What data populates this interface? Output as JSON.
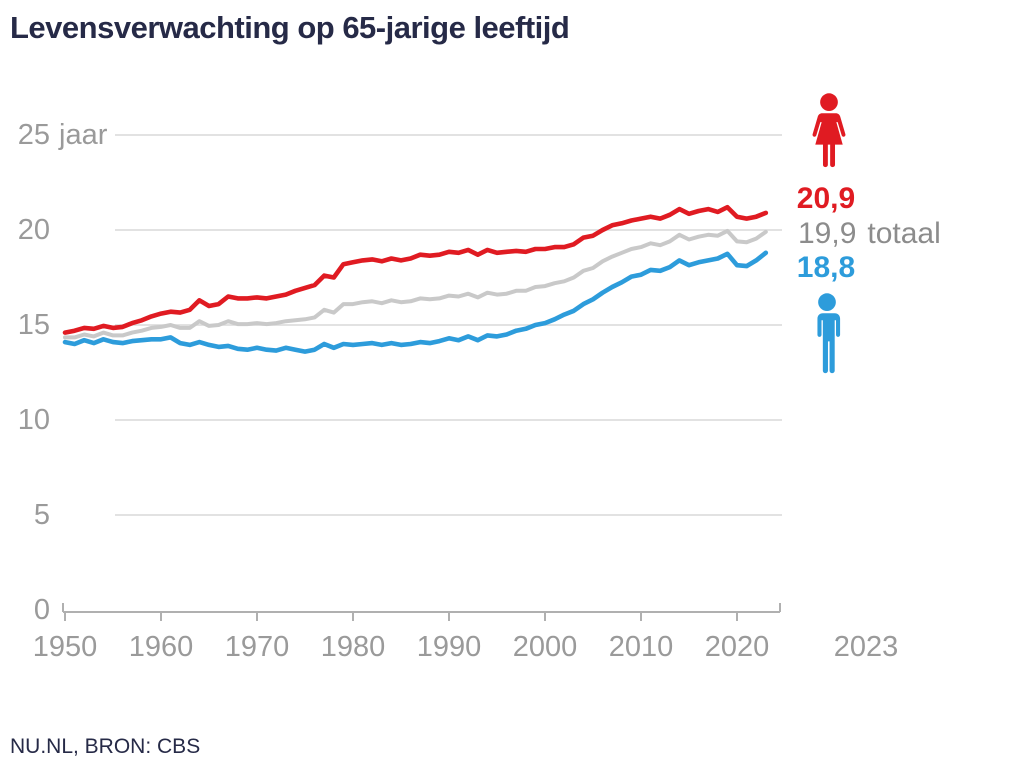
{
  "title": "Levensverwachting op 65-jarige leeftijd",
  "source": "NU.NL, BRON: CBS",
  "colors": {
    "women": "#e01b22",
    "men": "#2d9cdb",
    "total_line": "#c9c9c9",
    "grid": "#d9d9d9",
    "axis": "#b0b0b0",
    "tick_text": "#9a9a9a",
    "title_text": "#262a47",
    "annotation_total_text": "#8c8c8c"
  },
  "annotations": {
    "women_icon": "female-icon",
    "women_value": "20,9",
    "total_value": "19,9",
    "total_suffix": "totaal",
    "men_value": "18,8",
    "men_icon": "male-icon"
  },
  "chart_data": {
    "type": "line",
    "title": "Levensverwachting op 65-jarige leeftijd",
    "ylabel_unit": "jaar",
    "grid": true,
    "legend_position": "right-annotations",
    "ylim": [
      0,
      25
    ],
    "x_start": 1950,
    "x_end": 2023,
    "yticks": [
      {
        "v": 25,
        "label": "25",
        "suffix": "jaar"
      },
      {
        "v": 20,
        "label": "20",
        "suffix": ""
      },
      {
        "v": 15,
        "label": "15",
        "suffix": ""
      },
      {
        "v": 10,
        "label": "10",
        "suffix": ""
      },
      {
        "v": 5,
        "label": "5",
        "suffix": ""
      },
      {
        "v": 0,
        "label": "0",
        "suffix": ""
      }
    ],
    "xticks": [
      {
        "year": 1950,
        "label": "1950"
      },
      {
        "year": 1960,
        "label": "1960"
      },
      {
        "year": 1970,
        "label": "1970"
      },
      {
        "year": 1980,
        "label": "1980"
      },
      {
        "year": 1990,
        "label": "1990"
      },
      {
        "year": 2000,
        "label": "2000"
      },
      {
        "year": 2010,
        "label": "2010"
      },
      {
        "year": 2020,
        "label": "2020"
      }
    ],
    "x_end_label": "2023",
    "series": [
      {
        "name": "totaal",
        "color_key": "total_line",
        "end_value": 19.9,
        "values": [
          14.35,
          14.35,
          14.5,
          14.4,
          14.6,
          14.45,
          14.45,
          14.6,
          14.7,
          14.85,
          14.9,
          15.0,
          14.85,
          14.85,
          15.2,
          14.95,
          15.0,
          15.2,
          15.05,
          15.05,
          15.1,
          15.05,
          15.1,
          15.2,
          15.25,
          15.3,
          15.4,
          15.8,
          15.65,
          16.1,
          16.1,
          16.2,
          16.25,
          16.15,
          16.3,
          16.2,
          16.25,
          16.4,
          16.35,
          16.4,
          16.55,
          16.5,
          16.65,
          16.45,
          16.7,
          16.6,
          16.65,
          16.8,
          16.8,
          17.0,
          17.05,
          17.2,
          17.3,
          17.5,
          17.85,
          18.0,
          18.35,
          18.6,
          18.8,
          19.0,
          19.1,
          19.3,
          19.2,
          19.4,
          19.75,
          19.5,
          19.65,
          19.75,
          19.7,
          19.95,
          19.4,
          19.35,
          19.55,
          19.9
        ]
      },
      {
        "name": "vrouwen",
        "color_key": "women",
        "end_value": 20.9,
        "values": [
          14.6,
          14.7,
          14.85,
          14.8,
          14.95,
          14.85,
          14.9,
          15.1,
          15.25,
          15.45,
          15.6,
          15.7,
          15.65,
          15.8,
          16.3,
          16.0,
          16.1,
          16.5,
          16.4,
          16.4,
          16.45,
          16.4,
          16.5,
          16.6,
          16.8,
          16.95,
          17.1,
          17.6,
          17.5,
          18.2,
          18.3,
          18.4,
          18.45,
          18.35,
          18.5,
          18.4,
          18.5,
          18.7,
          18.65,
          18.7,
          18.85,
          18.8,
          18.95,
          18.7,
          18.95,
          18.8,
          18.85,
          18.9,
          18.85,
          19.0,
          19.0,
          19.1,
          19.1,
          19.25,
          19.6,
          19.7,
          20.0,
          20.25,
          20.35,
          20.5,
          20.6,
          20.7,
          20.6,
          20.8,
          21.1,
          20.85,
          21.0,
          21.1,
          20.95,
          21.2,
          20.7,
          20.6,
          20.7,
          20.9
        ]
      },
      {
        "name": "mannen",
        "color_key": "men",
        "end_value": 18.8,
        "values": [
          14.1,
          14.0,
          14.2,
          14.05,
          14.25,
          14.1,
          14.05,
          14.15,
          14.2,
          14.25,
          14.25,
          14.35,
          14.05,
          13.95,
          14.1,
          13.95,
          13.85,
          13.9,
          13.75,
          13.7,
          13.8,
          13.7,
          13.65,
          13.8,
          13.7,
          13.6,
          13.7,
          14.0,
          13.8,
          14.0,
          13.95,
          14.0,
          14.05,
          13.95,
          14.05,
          13.95,
          14.0,
          14.1,
          14.05,
          14.15,
          14.3,
          14.2,
          14.4,
          14.2,
          14.45,
          14.4,
          14.5,
          14.7,
          14.8,
          15.0,
          15.1,
          15.3,
          15.55,
          15.75,
          16.1,
          16.35,
          16.7,
          17.0,
          17.25,
          17.55,
          17.65,
          17.9,
          17.85,
          18.05,
          18.4,
          18.15,
          18.3,
          18.4,
          18.5,
          18.75,
          18.15,
          18.1,
          18.4,
          18.8
        ]
      }
    ]
  }
}
